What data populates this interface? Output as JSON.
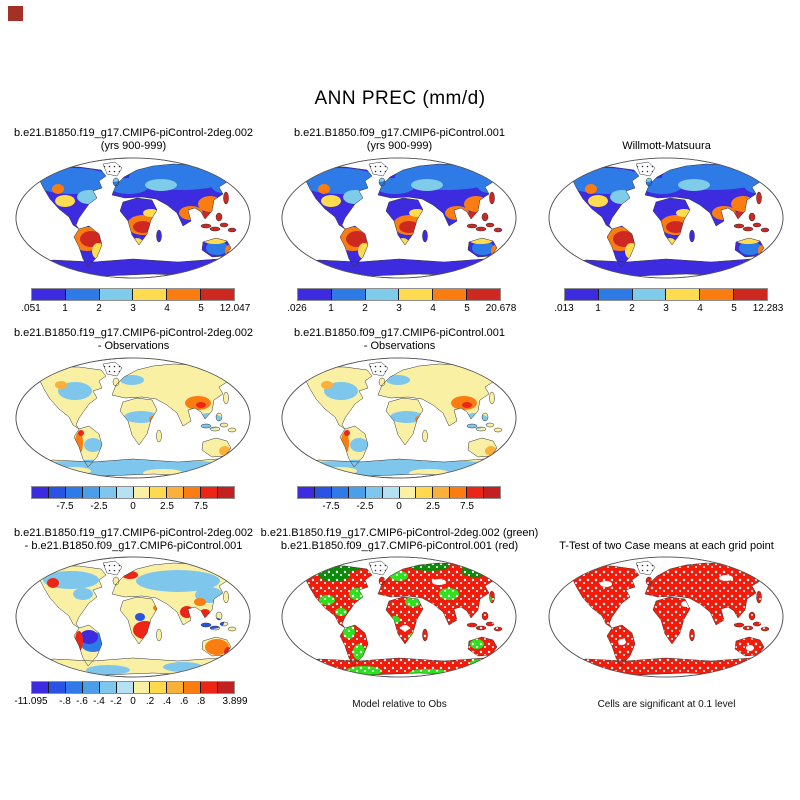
{
  "page": {
    "title": "ANN PREC (mm/d)"
  },
  "colors": {
    "corner_marker": "#A33126",
    "map_outline": "#555555",
    "abs_scale": [
      "#3D2BE0",
      "#2E7BE8",
      "#7FCBEA",
      "#FFDC4F",
      "#FB7D12",
      "#CE2920"
    ],
    "diff_scale": [
      "#3D2BE0",
      "#2853E4",
      "#2E7BE8",
      "#4B9FEA",
      "#7FC6EC",
      "#B5E1F2",
      "#FAF0A4",
      "#FFD94E",
      "#FCB03C",
      "#FB7D12",
      "#EC2517",
      "#C32121"
    ],
    "sig_green": "#2FE01F",
    "sig_green_dark": "#0B8A0B",
    "sig_red": "#F01D0D"
  },
  "panels": [
    {
      "id": "r1c1",
      "row": 0,
      "col": 0,
      "map_style": "prec",
      "title_lines": [
        "b.e21.B1850.f19_g17.CMIP6-piControl-2deg.002",
        "(yrs 900-999)"
      ],
      "colorbar": {
        "scale": "abs_scale",
        "labels": [
          {
            "t": ".051",
            "p": 0
          },
          {
            "t": "1",
            "p": 0.1667
          },
          {
            "t": "2",
            "p": 0.3333
          },
          {
            "t": "3",
            "p": 0.5
          },
          {
            "t": "4",
            "p": 0.6667
          },
          {
            "t": "5",
            "p": 0.8333
          },
          {
            "t": "12.047",
            "p": 1
          }
        ]
      }
    },
    {
      "id": "r1c2",
      "row": 0,
      "col": 1,
      "map_style": "prec",
      "title_lines": [
        "b.e21.B1850.f09_g17.CMIP6-piControl.001",
        "(yrs 900-999)"
      ],
      "colorbar": {
        "scale": "abs_scale",
        "labels": [
          {
            "t": ".026",
            "p": 0
          },
          {
            "t": "1",
            "p": 0.1667
          },
          {
            "t": "2",
            "p": 0.3333
          },
          {
            "t": "3",
            "p": 0.5
          },
          {
            "t": "4",
            "p": 0.6667
          },
          {
            "t": "5",
            "p": 0.8333
          },
          {
            "t": "20.678",
            "p": 1
          }
        ]
      }
    },
    {
      "id": "r1c3",
      "row": 0,
      "col": 2,
      "map_style": "prec",
      "title_lines": [
        "",
        "Willmott-Matsuura"
      ],
      "colorbar": {
        "scale": "abs_scale",
        "labels": [
          {
            "t": ".013",
            "p": 0
          },
          {
            "t": "1",
            "p": 0.1667
          },
          {
            "t": "2",
            "p": 0.3333
          },
          {
            "t": "3",
            "p": 0.5
          },
          {
            "t": "4",
            "p": 0.6667
          },
          {
            "t": "5",
            "p": 0.8333
          },
          {
            "t": "12.283",
            "p": 1
          }
        ]
      }
    },
    {
      "id": "r2c1",
      "row": 1,
      "col": 0,
      "map_style": "diff",
      "title_lines": [
        "b.e21.B1850.f19_g17.CMIP6-piControl-2deg.002",
        "- Observations"
      ],
      "colorbar": {
        "scale": "diff_scale",
        "labels": [
          {
            "t": "-7.5",
            "p": 0.1667
          },
          {
            "t": "-2.5",
            "p": 0.3333
          },
          {
            "t": "0",
            "p": 0.5
          },
          {
            "t": "2.5",
            "p": 0.6667
          },
          {
            "t": "7.5",
            "p": 0.8333
          }
        ]
      }
    },
    {
      "id": "r2c2",
      "row": 1,
      "col": 1,
      "map_style": "diff",
      "title_lines": [
        "b.e21.B1850.f09_g17.CMIP6-piControl.001",
        "- Observations"
      ],
      "colorbar": {
        "scale": "diff_scale",
        "labels": [
          {
            "t": "-7.5",
            "p": 0.1667
          },
          {
            "t": "-2.5",
            "p": 0.3333
          },
          {
            "t": "0",
            "p": 0.5
          },
          {
            "t": "2.5",
            "p": 0.6667
          },
          {
            "t": "7.5",
            "p": 0.8333
          }
        ]
      }
    },
    {
      "id": "r3c1",
      "row": 2,
      "col": 0,
      "map_style": "diff2",
      "title_lines": [
        "b.e21.B1850.f19_g17.CMIP6-piControl-2deg.002",
        "- b.e21.B1850.f09_g17.CMIP6-piControl.001"
      ],
      "colorbar": {
        "scale": "diff_scale",
        "labels": [
          {
            "t": "-11.095",
            "p": 0
          },
          {
            "t": "-.8",
            "p": 0.1667
          },
          {
            "t": "-.6",
            "p": 0.25
          },
          {
            "t": "-.4",
            "p": 0.3333
          },
          {
            "t": "-.2",
            "p": 0.4167
          },
          {
            "t": "0",
            "p": 0.5
          },
          {
            "t": ".2",
            "p": 0.5833
          },
          {
            "t": ".4",
            "p": 0.6667
          },
          {
            "t": ".6",
            "p": 0.75
          },
          {
            "t": ".8",
            "p": 0.8333
          },
          {
            "t": "3.899",
            "p": 1
          }
        ]
      }
    },
    {
      "id": "r3c2",
      "row": 2,
      "col": 1,
      "map_style": "sig",
      "title_lines": [
        "b.e21.B1850.f19_g17.CMIP6-piControl-2deg.002 (green)",
        "b.e21.B1850.f09_g17.CMIP6-piControl.001 (red)"
      ],
      "caption": "Model relative to Obs"
    },
    {
      "id": "r3c3",
      "row": 2,
      "col": 2,
      "map_style": "ttest",
      "title_lines": [
        "",
        "T-Test of two Case means at each grid point"
      ],
      "caption": "Cells are significant at 0.1 level"
    }
  ],
  "chart_data": [
    {
      "type": "heatmap",
      "projection": "robinson-world-map",
      "title": "b.e21.B1850.f19_g17.CMIP6-piControl-2deg.002 (yrs 900-999)",
      "units": "mm/d",
      "min": 0.051,
      "max": 12.047,
      "contour_levels": [
        1,
        2,
        3,
        4,
        5
      ],
      "legend_position": "below"
    },
    {
      "type": "heatmap",
      "projection": "robinson-world-map",
      "title": "b.e21.B1850.f09_g17.CMIP6-piControl.001 (yrs 900-999)",
      "units": "mm/d",
      "min": 0.026,
      "max": 20.678,
      "contour_levels": [
        1,
        2,
        3,
        4,
        5
      ],
      "legend_position": "below"
    },
    {
      "type": "heatmap",
      "projection": "robinson-world-map",
      "title": "Willmott-Matsuura",
      "units": "mm/d",
      "min": 0.013,
      "max": 12.283,
      "contour_levels": [
        1,
        2,
        3,
        4,
        5
      ],
      "legend_position": "below"
    },
    {
      "type": "heatmap",
      "projection": "robinson-world-map",
      "title": "b.e21.B1850.f19_g17.CMIP6-piControl-2deg.002 - Observations",
      "units": "mm/d",
      "contour_levels": [
        -7.5,
        -2.5,
        0,
        2.5,
        7.5
      ],
      "legend_position": "below"
    },
    {
      "type": "heatmap",
      "projection": "robinson-world-map",
      "title": "b.e21.B1850.f09_g17.CMIP6-piControl.001 - Observations",
      "units": "mm/d",
      "contour_levels": [
        -7.5,
        -2.5,
        0,
        2.5,
        7.5
      ],
      "legend_position": "below"
    },
    {
      "type": "heatmap",
      "projection": "robinson-world-map",
      "title": "b.e21.B1850.f19_g17.CMIP6-piControl-2deg.002 - b.e21.B1850.f09_g17.CMIP6-piControl.001",
      "units": "mm/d",
      "min": -11.095,
      "max": 3.899,
      "contour_levels": [
        -0.8,
        -0.6,
        -0.4,
        -0.2,
        0,
        0.2,
        0.4,
        0.6,
        0.8
      ],
      "legend_position": "below"
    },
    {
      "type": "heatmap",
      "projection": "robinson-world-map",
      "title": "Significance map: b.e21.B1850.f19_g17.CMIP6-piControl-2deg.002 (green), b.e21.B1850.f09_g17.CMIP6-piControl.001 (red)",
      "note": "Model relative to Obs"
    },
    {
      "type": "heatmap",
      "projection": "robinson-world-map",
      "title": "T-Test of two Case means at each grid point",
      "note": "Cells are significant at 0.1 level"
    }
  ]
}
